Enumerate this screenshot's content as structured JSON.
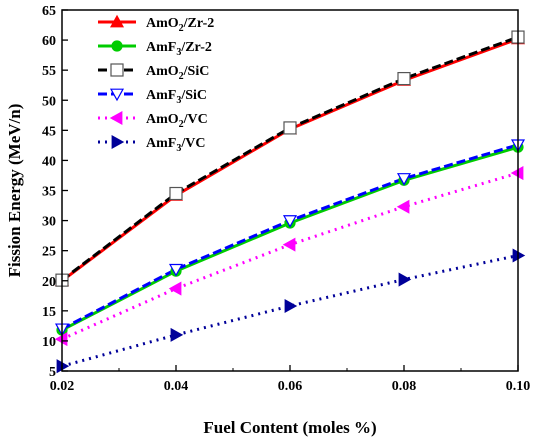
{
  "chart_data": {
    "type": "line",
    "xlabel": "Fuel Content (moles %)",
    "ylabel": "Fission Energy (MeV/n)",
    "xlim": [
      0.02,
      0.1
    ],
    "ylim": [
      5,
      65
    ],
    "x_ticks": [
      "0.02",
      "0.04",
      "0.06",
      "0.08",
      "0.10"
    ],
    "y_ticks": [
      "5",
      "10",
      "15",
      "20",
      "25",
      "30",
      "35",
      "40",
      "45",
      "50",
      "55",
      "60",
      "65"
    ],
    "grid": false,
    "legend_position": "top-left",
    "x": [
      0.02,
      0.04,
      0.06,
      0.08,
      0.1
    ],
    "series": [
      {
        "name": "AmO2/Zr-2",
        "label_main": "AmO",
        "label_sub": "2",
        "label_rest": "/Zr-2",
        "color": "#ff0000",
        "dash": "solid",
        "marker": "triangle-up-filled",
        "values": [
          20.0,
          34.2,
          45.2,
          53.3,
          60.2
        ]
      },
      {
        "name": "AmF3/Zr-2",
        "label_main": "AmF",
        "label_sub": "3",
        "label_rest": "/Zr-2",
        "color": "#00cc00",
        "dash": "solid",
        "marker": "circle-filled",
        "values": [
          11.8,
          21.6,
          29.6,
          36.7,
          42.2
        ]
      },
      {
        "name": "AmO2/SiC",
        "label_main": "AmO",
        "label_sub": "2",
        "label_rest": "/SiC",
        "color": "#000000",
        "dash": "dash",
        "marker": "square-open",
        "values": [
          20.1,
          34.5,
          45.4,
          53.6,
          60.5
        ]
      },
      {
        "name": "AmF3/SiC",
        "label_main": "AmF",
        "label_sub": "3",
        "label_rest": "/SiC",
        "color": "#0000ff",
        "dash": "dash",
        "marker": "triangle-down-open",
        "values": [
          12.0,
          21.9,
          30.0,
          37.0,
          42.6
        ]
      },
      {
        "name": "AmO2/VC",
        "label_main": "AmO",
        "label_sub": "2",
        "label_rest": "/VC",
        "color": "#ff00ff",
        "dash": "dot",
        "marker": "triangle-left-filled",
        "values": [
          10.3,
          18.7,
          26.0,
          32.3,
          37.9
        ]
      },
      {
        "name": "AmF3/VC",
        "label_main": "AmF",
        "label_sub": "3",
        "label_rest": "/VC",
        "color": "#000099",
        "dash": "dot",
        "marker": "triangle-right-filled",
        "values": [
          5.8,
          11.0,
          15.8,
          20.2,
          24.2
        ]
      }
    ]
  }
}
